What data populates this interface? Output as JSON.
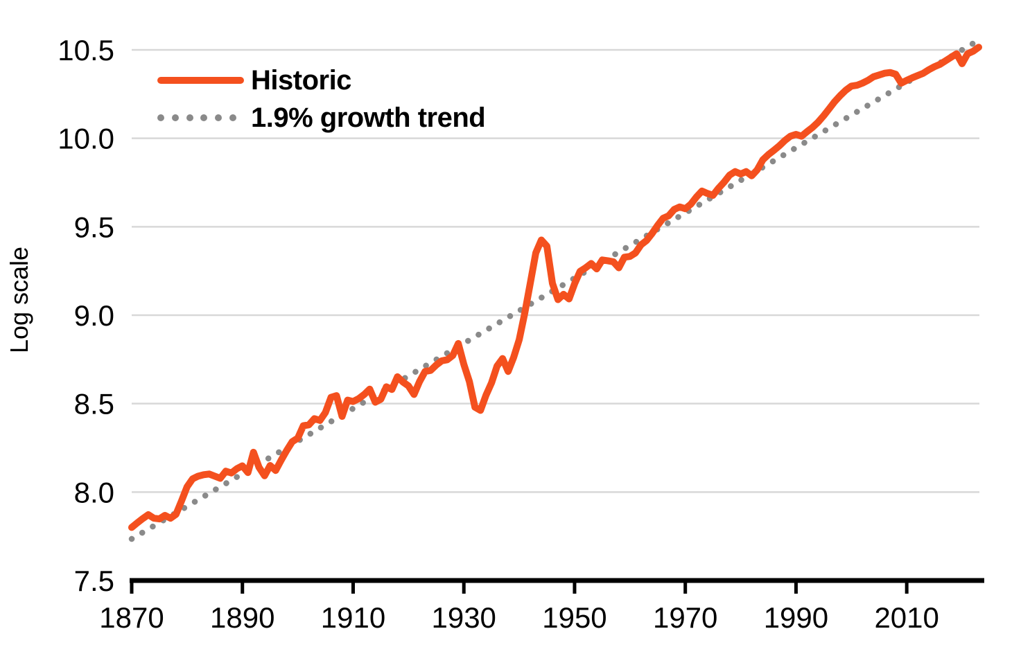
{
  "figure": {
    "y_axis_title": "Log scale",
    "legend": {
      "items": [
        {
          "label": "Historic",
          "style": "solid",
          "color": "#F4501E"
        },
        {
          "label": "1.9% growth trend",
          "style": "dotted",
          "color": "#8A8A8A"
        }
      ]
    },
    "colors": {
      "historic": "#F4501E",
      "trend": "#8A8A8A",
      "gridline": "#D8D8D8",
      "axis": "#000000",
      "text": "#000000"
    }
  },
  "chart_data": {
    "type": "line",
    "title": "",
    "xlabel": "",
    "ylabel": "Log scale",
    "xlim": [
      1870,
      2023
    ],
    "ylim": [
      7.5,
      10.62
    ],
    "x_ticks": [
      "1870",
      "1890",
      "1910",
      "1930",
      "1950",
      "1970",
      "1990",
      "2010"
    ],
    "y_ticks": [
      "7.5",
      "8.0",
      "8.5",
      "9.0",
      "9.5",
      "10.0",
      "10.5"
    ],
    "grid": "horizontal-only",
    "legend_position": "upper-left-inside",
    "series": [
      {
        "name": "Historic",
        "style": "solid",
        "color": "#F4501E",
        "years": [
          1870,
          1871,
          1872,
          1873,
          1874,
          1875,
          1876,
          1877,
          1878,
          1879,
          1880,
          1881,
          1882,
          1883,
          1884,
          1885,
          1886,
          1887,
          1888,
          1889,
          1890,
          1891,
          1892,
          1893,
          1894,
          1895,
          1896,
          1897,
          1898,
          1899,
          1900,
          1901,
          1902,
          1903,
          1904,
          1905,
          1906,
          1907,
          1908,
          1909,
          1910,
          1911,
          1912,
          1913,
          1914,
          1915,
          1916,
          1917,
          1918,
          1919,
          1920,
          1921,
          1922,
          1923,
          1924,
          1925,
          1926,
          1927,
          1928,
          1929,
          1930,
          1931,
          1932,
          1933,
          1934,
          1935,
          1936,
          1937,
          1938,
          1939,
          1940,
          1941,
          1942,
          1943,
          1944,
          1945,
          1946,
          1947,
          1948,
          1949,
          1950,
          1951,
          1952,
          1953,
          1954,
          1955,
          1956,
          1957,
          1958,
          1959,
          1960,
          1961,
          1962,
          1963,
          1964,
          1965,
          1966,
          1967,
          1968,
          1969,
          1970,
          1971,
          1972,
          1973,
          1974,
          1975,
          1976,
          1977,
          1978,
          1979,
          1980,
          1981,
          1982,
          1983,
          1984,
          1985,
          1986,
          1987,
          1988,
          1989,
          1990,
          1991,
          1992,
          1993,
          1994,
          1995,
          1996,
          1997,
          1998,
          1999,
          2000,
          2001,
          2002,
          2003,
          2004,
          2005,
          2006,
          2007,
          2008,
          2009,
          2010,
          2011,
          2012,
          2013,
          2014,
          2015,
          2016,
          2017,
          2018,
          2019,
          2020,
          2021,
          2022,
          2023
        ],
        "values": [
          7.8,
          7.826,
          7.85,
          7.872,
          7.852,
          7.848,
          7.868,
          7.852,
          7.874,
          7.95,
          8.03,
          8.075,
          8.09,
          8.098,
          8.102,
          8.09,
          8.078,
          8.118,
          8.108,
          8.132,
          8.148,
          8.11,
          8.225,
          8.14,
          8.092,
          8.15,
          8.122,
          8.18,
          8.235,
          8.285,
          8.305,
          8.375,
          8.38,
          8.415,
          8.405,
          8.45,
          8.535,
          8.545,
          8.428,
          8.52,
          8.512,
          8.528,
          8.552,
          8.582,
          8.508,
          8.525,
          8.595,
          8.58,
          8.652,
          8.622,
          8.6,
          8.552,
          8.625,
          8.682,
          8.688,
          8.718,
          8.742,
          8.748,
          8.772,
          8.84,
          8.722,
          8.625,
          8.48,
          8.462,
          8.548,
          8.618,
          8.712,
          8.755,
          8.682,
          8.762,
          8.862,
          9.012,
          9.182,
          9.352,
          9.425,
          9.39,
          9.18,
          9.088,
          9.118,
          9.092,
          9.178,
          9.248,
          9.268,
          9.292,
          9.262,
          9.312,
          9.308,
          9.302,
          9.268,
          9.328,
          9.332,
          9.352,
          9.398,
          9.422,
          9.462,
          9.508,
          9.548,
          9.562,
          9.598,
          9.612,
          9.602,
          9.628,
          9.668,
          9.702,
          9.688,
          9.678,
          9.718,
          9.752,
          9.792,
          9.812,
          9.798,
          9.812,
          9.788,
          9.822,
          9.878,
          9.908,
          9.932,
          9.958,
          9.988,
          10.012,
          10.022,
          10.012,
          10.038,
          10.062,
          10.092,
          10.128,
          10.168,
          10.208,
          10.242,
          10.272,
          10.295,
          10.3,
          10.312,
          10.328,
          10.348,
          10.358,
          10.368,
          10.372,
          10.362,
          10.312,
          10.328,
          10.342,
          10.355,
          10.368,
          10.388,
          10.405,
          10.418,
          10.438,
          10.458,
          10.478,
          10.422,
          10.478,
          10.492,
          10.515
        ]
      },
      {
        "name": "1.9% growth trend",
        "style": "dotted",
        "color": "#8A8A8A",
        "years": [
          1870,
          2023
        ],
        "values": [
          7.735,
          10.555
        ]
      }
    ]
  }
}
